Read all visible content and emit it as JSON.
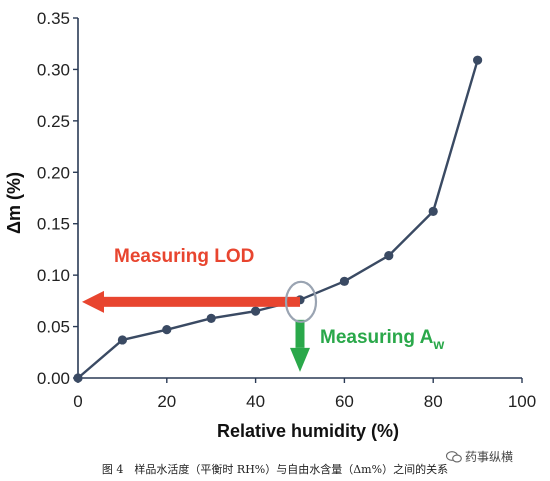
{
  "chart_data": {
    "type": "line",
    "title": "",
    "xlabel": "Relative humidity (%)",
    "ylabel": "Δm (%)",
    "xlim": [
      0,
      100
    ],
    "ylim": [
      0,
      0.35
    ],
    "x_ticks": [
      "0",
      "20",
      "40",
      "60",
      "80",
      "100"
    ],
    "y_ticks": [
      "0.00",
      "0.05",
      "0.10",
      "0.15",
      "0.20",
      "0.25",
      "0.30",
      "0.35"
    ],
    "grid": false,
    "series": [
      {
        "x": [
          0,
          10,
          20,
          30,
          40,
          50,
          60,
          70,
          80,
          90
        ],
        "y": [
          0.0,
          0.037,
          0.047,
          0.058,
          0.065,
          0.076,
          0.094,
          0.119,
          0.162,
          0.309
        ]
      }
    ],
    "annotations": {
      "lod_label": "Measuring LOD",
      "aw_label": "Measuring A",
      "aw_subscript": "w",
      "highlight_x": 50,
      "highlight_y": 0.076
    },
    "colors": {
      "line": "#3a4a63",
      "marker": "#3a4a63",
      "axis": "#2a3a55",
      "red": "#e8452f",
      "green": "#2aa84a",
      "circle": "#9aa4b2"
    }
  },
  "caption": "图 4　样品水活度（平衡时 RH%）与自由水含量（Δm%）之间的关系",
  "watermark": "药事纵横"
}
